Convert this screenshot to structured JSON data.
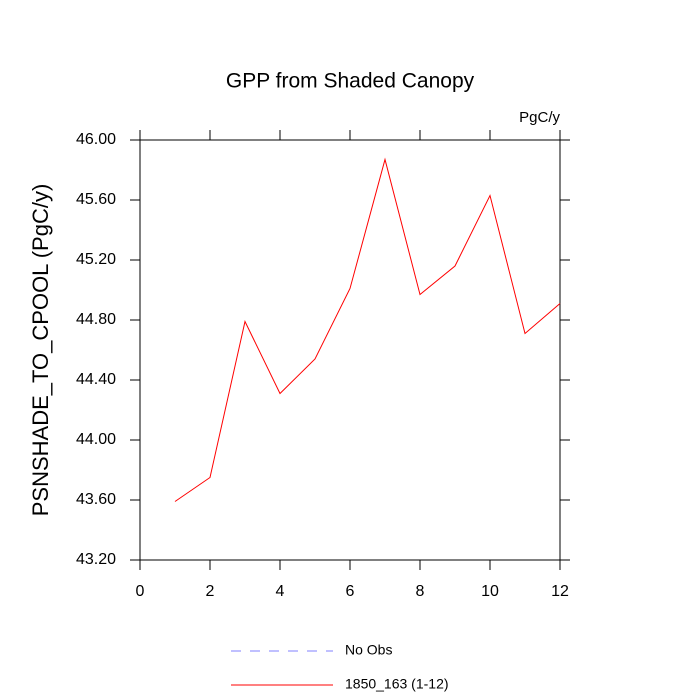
{
  "chart_data": {
    "type": "line",
    "title": "GPP from Shaded Canopy",
    "units": "PgC/y",
    "y_label": "PSNSHADE_TO_CPOOL  (PgC/y)",
    "x": [
      1,
      2,
      3,
      4,
      5,
      6,
      7,
      8,
      9,
      10,
      11,
      12
    ],
    "series": [
      {
        "color": "#ff0000",
        "values": [
          43.59,
          43.75,
          44.79,
          44.31,
          44.54,
          45.01,
          45.87,
          44.97,
          45.16,
          45.63,
          44.71,
          44.91
        ]
      }
    ],
    "xlim": [
      0,
      12
    ],
    "xticks": [
      0,
      2,
      4,
      6,
      8,
      10,
      12
    ],
    "ylim": [
      43.2,
      46.0
    ],
    "yticks": [
      {
        "value": 43.2,
        "label": "43.20"
      },
      {
        "value": 43.6,
        "label": "43.60"
      },
      {
        "value": 44.0,
        "label": "44.00"
      },
      {
        "value": 44.4,
        "label": "44.40"
      },
      {
        "value": 44.8,
        "label": "44.80"
      },
      {
        "value": 45.2,
        "label": "45.20"
      },
      {
        "value": 45.6,
        "label": "45.60"
      },
      {
        "value": 46.0,
        "label": "46.00"
      }
    ],
    "legend": [
      {
        "name": "No Obs",
        "color": "#8080ff",
        "dashed": true
      },
      {
        "name": "1850_163 (1-12)",
        "color": "#ff0000",
        "dashed": false
      }
    ]
  }
}
